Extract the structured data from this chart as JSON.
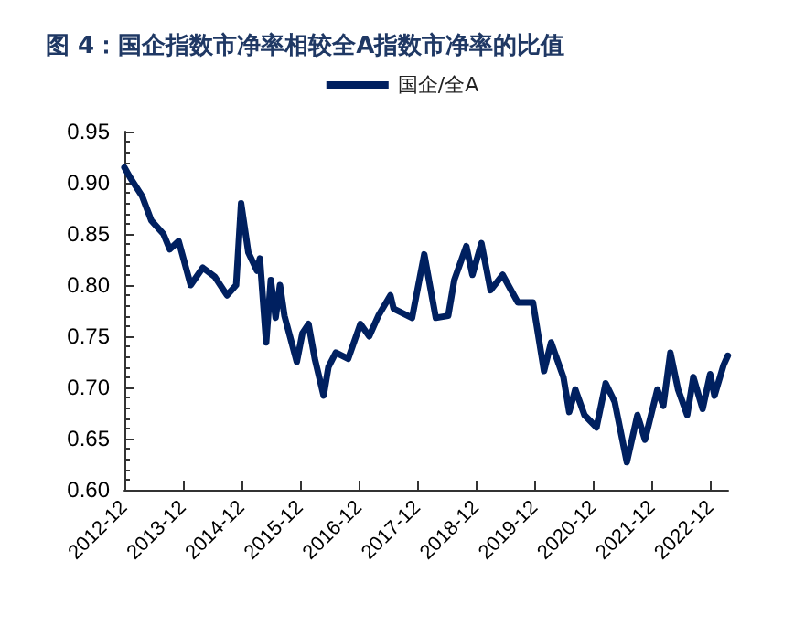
{
  "chart_data": {
    "type": "line",
    "title": "图 4：国企指数市净率相较全A指数市净率的比值",
    "legend": "top",
    "xlim": [
      "2012-12-01",
      "2023-03-20"
    ],
    "xticks": [
      "2012-12",
      "2013-12",
      "2014-12",
      "2015-12",
      "2016-12",
      "2017-12",
      "2018-12",
      "2019-12",
      "2020-12",
      "2021-12",
      "2022-12"
    ],
    "ylim": [
      0.6,
      0.95
    ],
    "yticks": [
      {
        "value": 0.6,
        "label": "0.60"
      },
      {
        "value": 0.65,
        "label": "0.65"
      },
      {
        "value": 0.7,
        "label": "0.70"
      },
      {
        "value": 0.75,
        "label": "0.75"
      },
      {
        "value": 0.8,
        "label": "0.80"
      },
      {
        "value": 0.85,
        "label": "0.85"
      },
      {
        "value": 0.9,
        "label": "0.90"
      },
      {
        "value": 0.95,
        "label": "0.95"
      }
    ],
    "grid": false,
    "marker": "none",
    "line_style": "solid",
    "series": [
      {
        "name": "国企/全A",
        "color": "#002060",
        "x": [
          "2012-12-01",
          "2013-01-06",
          "2013-03-21",
          "2013-05-18",
          "2013-08-01",
          "2013-09-10",
          "2013-11-04",
          "2014-01-18",
          "2014-04-03",
          "2014-06-18",
          "2014-09-01",
          "2014-10-28",
          "2014-11-28",
          "2015-01-12",
          "2015-03-07",
          "2015-03-25",
          "2015-05-03",
          "2015-06-01",
          "2015-07-01",
          "2015-07-28",
          "2015-08-25",
          "2015-11-10",
          "2015-12-15",
          "2016-01-22",
          "2016-03-01",
          "2016-04-25",
          "2016-05-25",
          "2016-07-10",
          "2016-09-25",
          "2016-12-10",
          "2017-02-03",
          "2017-04-01",
          "2017-06-15",
          "2017-07-05",
          "2017-10-28",
          "2018-01-12",
          "2018-03-25",
          "2018-06-10",
          "2018-07-18",
          "2018-10-01",
          "2018-11-08",
          "2019-01-03",
          "2019-03-01",
          "2019-05-15",
          "2019-08-18",
          "2019-11-20",
          "2020-01-28",
          "2020-03-12",
          "2020-05-28",
          "2020-07-03",
          "2020-08-10",
          "2020-10-06",
          "2020-12-20",
          "2021-02-15",
          "2021-04-12",
          "2021-06-27",
          "2021-09-01",
          "2021-10-18",
          "2022-01-03",
          "2022-02-09",
          "2022-03-25",
          "2022-05-12",
          "2022-07-08",
          "2022-08-15",
          "2022-10-12",
          "2022-11-28",
          "2022-12-25",
          "2023-02-20",
          "2023-03-18"
        ],
        "values": [
          0.915,
          0.905,
          0.887,
          0.863,
          0.85,
          0.835,
          0.843,
          0.8,
          0.817,
          0.808,
          0.79,
          0.8,
          0.88,
          0.832,
          0.814,
          0.826,
          0.744,
          0.805,
          0.768,
          0.8,
          0.77,
          0.725,
          0.753,
          0.762,
          0.728,
          0.692,
          0.72,
          0.734,
          0.728,
          0.762,
          0.75,
          0.77,
          0.79,
          0.777,
          0.768,
          0.83,
          0.768,
          0.77,
          0.805,
          0.838,
          0.81,
          0.841,
          0.795,
          0.81,
          0.783,
          0.783,
          0.716,
          0.744,
          0.71,
          0.676,
          0.698,
          0.673,
          0.661,
          0.704,
          0.686,
          0.627,
          0.673,
          0.649,
          0.698,
          0.682,
          0.734,
          0.698,
          0.673,
          0.71,
          0.679,
          0.713,
          0.692,
          0.722,
          0.731
        ]
      }
    ]
  }
}
